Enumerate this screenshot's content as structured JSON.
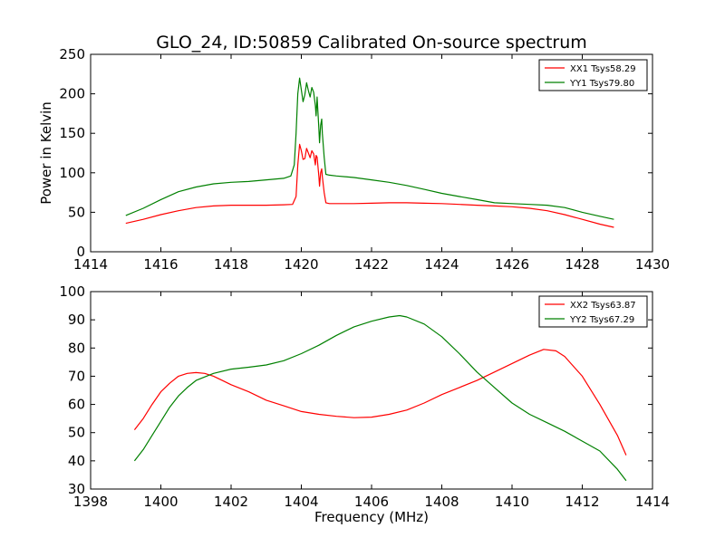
{
  "figure": {
    "title": "GLO_24, ID:50859 Calibrated On-source spectrum"
  },
  "chart_data": [
    {
      "type": "line",
      "ylabel": "Power in Kelvin",
      "xlabel": "",
      "xlim": [
        1414,
        1430
      ],
      "ylim": [
        0,
        250
      ],
      "xticks": [
        1414,
        1416,
        1418,
        1420,
        1422,
        1424,
        1426,
        1428,
        1430
      ],
      "yticks": [
        0,
        50,
        100,
        150,
        200,
        250
      ],
      "grid": false,
      "legend_position": "top-right",
      "series": [
        {
          "name": "XX1 Tsys58.29",
          "color": "#ff0000",
          "points": [
            [
              1415.0,
              36
            ],
            [
              1415.5,
              41
            ],
            [
              1416.0,
              47
            ],
            [
              1416.5,
              52
            ],
            [
              1417.0,
              56
            ],
            [
              1417.5,
              58
            ],
            [
              1418.0,
              59
            ],
            [
              1418.5,
              59
            ],
            [
              1419.0,
              59
            ],
            [
              1419.5,
              59.5
            ],
            [
              1419.75,
              60
            ],
            [
              1419.85,
              70
            ],
            [
              1419.9,
              110
            ],
            [
              1419.95,
              136
            ],
            [
              1420.0,
              128
            ],
            [
              1420.05,
              117
            ],
            [
              1420.1,
              118
            ],
            [
              1420.15,
              131
            ],
            [
              1420.2,
              125
            ],
            [
              1420.25,
              119
            ],
            [
              1420.3,
              128
            ],
            [
              1420.35,
              124
            ],
            [
              1420.4,
              110
            ],
            [
              1420.42,
              122
            ],
            [
              1420.45,
              120
            ],
            [
              1420.5,
              95
            ],
            [
              1420.52,
              83
            ],
            [
              1420.55,
              100
            ],
            [
              1420.58,
              105
            ],
            [
              1420.6,
              95
            ],
            [
              1420.65,
              75
            ],
            [
              1420.7,
              62
            ],
            [
              1420.8,
              61
            ],
            [
              1421.0,
              61
            ],
            [
              1421.5,
              61
            ],
            [
              1422.0,
              61.5
            ],
            [
              1422.5,
              62
            ],
            [
              1423.0,
              62
            ],
            [
              1423.5,
              61.5
            ],
            [
              1424.0,
              61
            ],
            [
              1424.5,
              60
            ],
            [
              1425.0,
              59
            ],
            [
              1425.5,
              58
            ],
            [
              1426.0,
              57
            ],
            [
              1426.5,
              55
            ],
            [
              1427.0,
              52
            ],
            [
              1427.5,
              47
            ],
            [
              1428.0,
              41
            ],
            [
              1428.5,
              35
            ],
            [
              1428.9,
              31
            ]
          ]
        },
        {
          "name": "YY1 Tsys79.80",
          "color": "#008000",
          "points": [
            [
              1415.0,
              46
            ],
            [
              1415.5,
              55
            ],
            [
              1416.0,
              66
            ],
            [
              1416.5,
              76
            ],
            [
              1417.0,
              82
            ],
            [
              1417.5,
              86
            ],
            [
              1418.0,
              88
            ],
            [
              1418.5,
              89
            ],
            [
              1419.0,
              91
            ],
            [
              1419.5,
              93
            ],
            [
              1419.7,
              96
            ],
            [
              1419.8,
              110
            ],
            [
              1419.85,
              150
            ],
            [
              1419.9,
              200
            ],
            [
              1419.95,
              220
            ],
            [
              1420.0,
              205
            ],
            [
              1420.05,
              190
            ],
            [
              1420.1,
              199
            ],
            [
              1420.15,
              214
            ],
            [
              1420.2,
              204
            ],
            [
              1420.25,
              196
            ],
            [
              1420.3,
              208
            ],
            [
              1420.35,
              202
            ],
            [
              1420.4,
              185
            ],
            [
              1420.42,
              172
            ],
            [
              1420.45,
              196
            ],
            [
              1420.5,
              155
            ],
            [
              1420.52,
              138
            ],
            [
              1420.55,
              160
            ],
            [
              1420.58,
              168
            ],
            [
              1420.6,
              150
            ],
            [
              1420.65,
              120
            ],
            [
              1420.7,
              98
            ],
            [
              1420.8,
              97
            ],
            [
              1421.0,
              96
            ],
            [
              1421.5,
              94
            ],
            [
              1422.0,
              91
            ],
            [
              1422.5,
              88
            ],
            [
              1423.0,
              84
            ],
            [
              1423.5,
              79
            ],
            [
              1424.0,
              74
            ],
            [
              1424.5,
              70
            ],
            [
              1425.0,
              66
            ],
            [
              1425.5,
              62
            ],
            [
              1426.0,
              61
            ],
            [
              1426.5,
              60
            ],
            [
              1427.0,
              59
            ],
            [
              1427.5,
              56
            ],
            [
              1428.0,
              50
            ],
            [
              1428.5,
              45
            ],
            [
              1428.9,
              41
            ]
          ]
        }
      ]
    },
    {
      "type": "line",
      "ylabel": "",
      "xlabel": "Frequency (MHz)",
      "xlim": [
        1398,
        1414
      ],
      "ylim": [
        30,
        100
      ],
      "xticks": [
        1398,
        1400,
        1402,
        1404,
        1406,
        1408,
        1410,
        1412,
        1414
      ],
      "yticks": [
        30,
        40,
        50,
        60,
        70,
        80,
        90,
        100
      ],
      "grid": false,
      "legend_position": "top-right",
      "series": [
        {
          "name": "XX2 Tsys63.87",
          "color": "#ff0000",
          "points": [
            [
              1399.25,
              51
            ],
            [
              1399.5,
              55
            ],
            [
              1399.75,
              60
            ],
            [
              1400.0,
              64.5
            ],
            [
              1400.25,
              67.5
            ],
            [
              1400.5,
              70
            ],
            [
              1400.75,
              71
            ],
            [
              1401.0,
              71.3
            ],
            [
              1401.25,
              71
            ],
            [
              1401.5,
              70
            ],
            [
              1401.75,
              68.5
            ],
            [
              1402.0,
              67
            ],
            [
              1402.5,
              64.5
            ],
            [
              1403.0,
              61.5
            ],
            [
              1403.5,
              59.5
            ],
            [
              1404.0,
              57.5
            ],
            [
              1404.5,
              56.5
            ],
            [
              1405.0,
              55.8
            ],
            [
              1405.5,
              55.3
            ],
            [
              1406.0,
              55.5
            ],
            [
              1406.5,
              56.5
            ],
            [
              1407.0,
              58
            ],
            [
              1407.5,
              60.5
            ],
            [
              1408.0,
              63.5
            ],
            [
              1408.5,
              66
            ],
            [
              1409.0,
              68.5
            ],
            [
              1409.5,
              71.5
            ],
            [
              1410.0,
              74.5
            ],
            [
              1410.5,
              77.5
            ],
            [
              1410.9,
              79.5
            ],
            [
              1411.25,
              79
            ],
            [
              1411.5,
              77
            ],
            [
              1412.0,
              70
            ],
            [
              1412.5,
              60
            ],
            [
              1413.0,
              49
            ],
            [
              1413.25,
              42
            ]
          ]
        },
        {
          "name": "YY2 Tsys67.29",
          "color": "#008000",
          "points": [
            [
              1399.25,
              40
            ],
            [
              1399.5,
              44
            ],
            [
              1399.75,
              49
            ],
            [
              1400.0,
              54
            ],
            [
              1400.25,
              59
            ],
            [
              1400.5,
              63
            ],
            [
              1400.75,
              66
            ],
            [
              1401.0,
              68.5
            ],
            [
              1401.5,
              71
            ],
            [
              1402.0,
              72.5
            ],
            [
              1402.5,
              73.2
            ],
            [
              1403.0,
              74
            ],
            [
              1403.5,
              75.5
            ],
            [
              1404.0,
              78
            ],
            [
              1404.5,
              81
            ],
            [
              1405.0,
              84.5
            ],
            [
              1405.5,
              87.5
            ],
            [
              1406.0,
              89.5
            ],
            [
              1406.5,
              91
            ],
            [
              1406.8,
              91.5
            ],
            [
              1407.0,
              91
            ],
            [
              1407.5,
              88.5
            ],
            [
              1408.0,
              84
            ],
            [
              1408.5,
              78
            ],
            [
              1409.0,
              71.5
            ],
            [
              1409.5,
              66
            ],
            [
              1410.0,
              60.5
            ],
            [
              1410.5,
              56.5
            ],
            [
              1411.0,
              53.5
            ],
            [
              1411.5,
              50.5
            ],
            [
              1412.0,
              47
            ],
            [
              1412.5,
              43.5
            ],
            [
              1413.0,
              37
            ],
            [
              1413.25,
              33
            ]
          ]
        }
      ]
    }
  ]
}
